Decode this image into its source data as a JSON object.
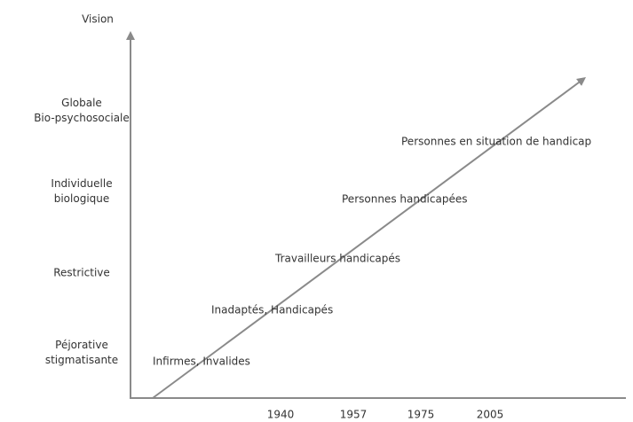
{
  "axis": {
    "y_title": "Vision",
    "y_levels": [
      {
        "lines": [
          "Globale",
          "Bio-psychosociale"
        ]
      },
      {
        "lines": [
          "Individuelle",
          "biologique"
        ]
      },
      {
        "lines": [
          "Restrictive"
        ]
      },
      {
        "lines": [
          "Péjorative",
          "stigmatisante"
        ]
      }
    ],
    "x_years": [
      "1940",
      "1957",
      "1975",
      "2005"
    ]
  },
  "stages": [
    "Infirmes, Invalides",
    "Inadaptés, Handicapés",
    "Travailleurs handicapés",
    "Personnes handicapées",
    "Personnes en situation de handicap"
  ]
}
